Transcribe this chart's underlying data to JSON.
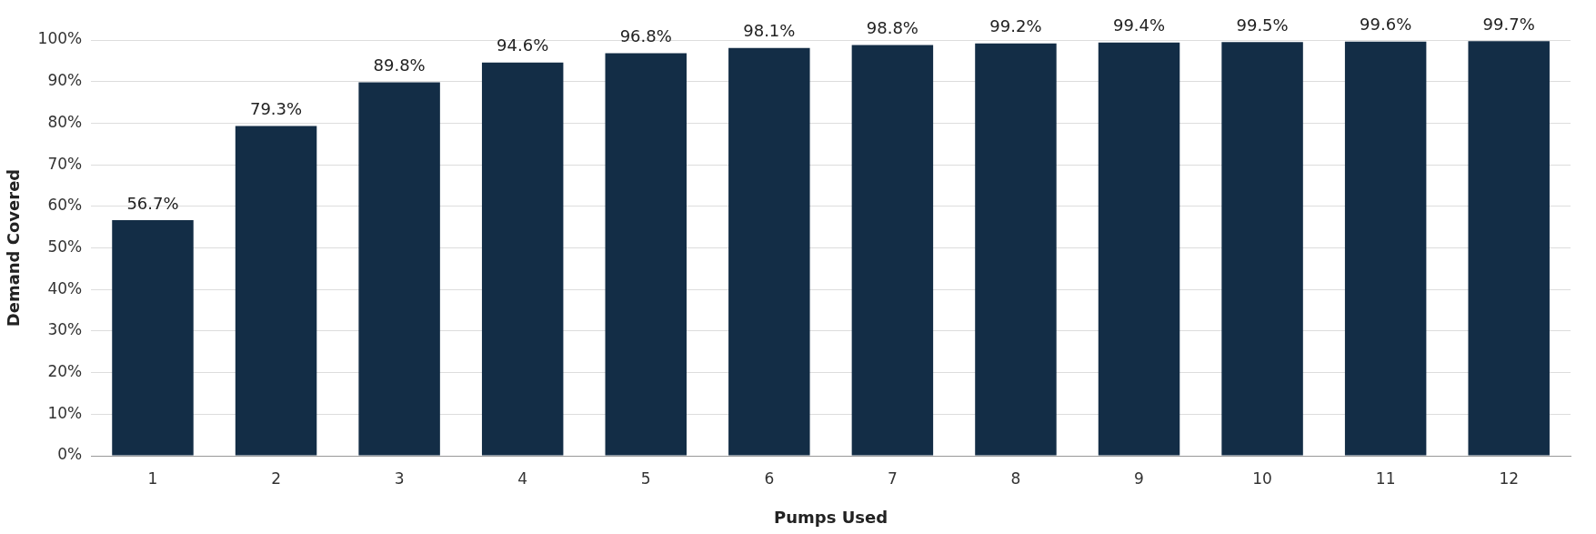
{
  "chart_data": {
    "type": "bar",
    "xlabel": "Pumps Used",
    "ylabel": "Demand Covered",
    "categories": [
      "1",
      "2",
      "3",
      "4",
      "5",
      "6",
      "7",
      "8",
      "9",
      "10",
      "11",
      "12"
    ],
    "values": [
      56.7,
      79.3,
      89.8,
      94.6,
      96.8,
      98.1,
      98.8,
      99.2,
      99.4,
      99.5,
      99.6,
      99.7
    ],
    "value_labels": [
      "56.7%",
      "79.3%",
      "89.8%",
      "94.6%",
      "96.8%",
      "98.1%",
      "98.8%",
      "99.2%",
      "99.4%",
      "99.5%",
      "99.6%",
      "99.7%"
    ],
    "color": "#132d46",
    "ylim": [
      0,
      100
    ],
    "yticks": [
      {
        "value": 0,
        "label": "0%"
      },
      {
        "value": 10,
        "label": "10%"
      },
      {
        "value": 20,
        "label": "20%"
      },
      {
        "value": 30,
        "label": "30%"
      },
      {
        "value": 40,
        "label": "40%"
      },
      {
        "value": 50,
        "label": "50%"
      },
      {
        "value": 60,
        "label": "60%"
      },
      {
        "value": 70,
        "label": "70%"
      },
      {
        "value": 80,
        "label": "80%"
      },
      {
        "value": 90,
        "label": "90%"
      },
      {
        "value": 100,
        "label": "100%"
      }
    ],
    "grid": "y",
    "legend": false
  }
}
